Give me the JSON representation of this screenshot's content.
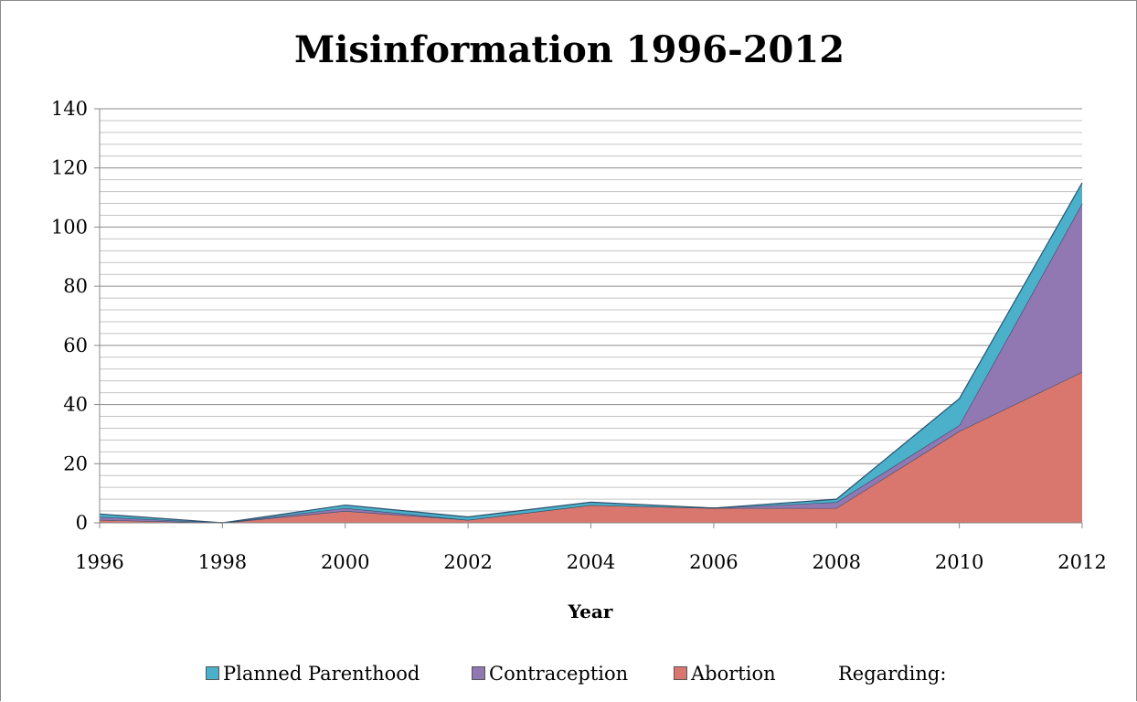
{
  "chart_data": {
    "type": "area",
    "stacked": true,
    "title": "Misinformation 1996-2012",
    "xlabel": "Year",
    "ylabel": "",
    "ylim": [
      0,
      140
    ],
    "yticks": [
      0,
      20,
      40,
      60,
      80,
      100,
      120,
      140
    ],
    "minor_gridline_step": 4,
    "grid": true,
    "categories": [
      "1996",
      "1998",
      "2000",
      "2002",
      "2004",
      "2006",
      "2008",
      "2010",
      "2012"
    ],
    "series": [
      {
        "name": "Abortion",
        "color": "#d9776f",
        "values": [
          1,
          0,
          4,
          1,
          6,
          5,
          5,
          31,
          51
        ]
      },
      {
        "name": "Contraception",
        "color": "#9278b3",
        "values": [
          1,
          0,
          1,
          0,
          0,
          0,
          2,
          2,
          57
        ]
      },
      {
        "name": "Planned Parenthood",
        "color": "#4bb0c9",
        "values": [
          1,
          0,
          1,
          1,
          1,
          0,
          1,
          9,
          7
        ]
      }
    ],
    "legend_position": "bottom",
    "legend_order": [
      "Planned Parenthood",
      "Contraception",
      "Abortion"
    ],
    "legend_trailing_text": "Regarding:"
  }
}
